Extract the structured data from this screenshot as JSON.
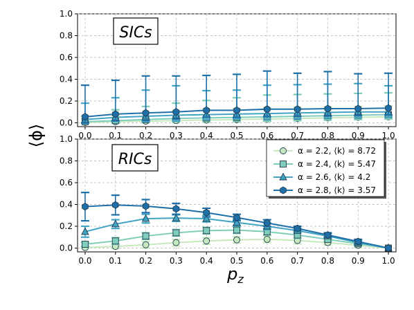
{
  "chart_data": [
    {
      "type": "line",
      "panel": "top",
      "label": "SICs",
      "x": [
        0.0,
        0.1,
        0.2,
        0.3,
        0.4,
        0.5,
        0.6,
        0.7,
        0.8,
        0.9,
        1.0
      ],
      "xlim": [
        0.0,
        1.0
      ],
      "ylim": [
        0.0,
        1.0
      ],
      "xticks": [
        "0.0",
        "0.1",
        "0.2",
        "0.3",
        "0.4",
        "0.5",
        "0.6",
        "0.7",
        "0.8",
        "0.9",
        "1.0"
      ],
      "yticks": [
        "0.0",
        "0.2",
        "0.4",
        "0.6",
        "0.8",
        "1.0"
      ],
      "series": [
        {
          "name": "α = 2.2, ⟨k⟩ = 8.72",
          "color": "#c7e9c0",
          "marker": "circle",
          "values": [
            0.005,
            0.01,
            0.015,
            0.02,
            0.025,
            0.03,
            0.035,
            0.04,
            0.045,
            0.05,
            0.055
          ],
          "err_up": [
            0.03,
            0.06,
            0.08,
            0.09,
            0.1,
            0.1,
            0.1,
            0.1,
            0.1,
            0.1,
            0.1
          ]
        },
        {
          "name": "α = 2.4, ⟨k⟩ = 5.47",
          "color": "#7fcdbb",
          "marker": "square",
          "values": [
            0.01,
            0.02,
            0.03,
            0.04,
            0.045,
            0.05,
            0.055,
            0.06,
            0.065,
            0.07,
            0.075
          ],
          "err_up": [
            0.05,
            0.1,
            0.12,
            0.14,
            0.16,
            0.18,
            0.2,
            0.2,
            0.2,
            0.2,
            0.2
          ]
        },
        {
          "name": "α = 2.6, ⟨k⟩ = 4.2",
          "color": "#41a4c4",
          "marker": "triangle",
          "values": [
            0.03,
            0.05,
            0.06,
            0.07,
            0.075,
            0.08,
            0.085,
            0.09,
            0.095,
            0.1,
            0.1
          ],
          "err_up": [
            0.15,
            0.18,
            0.24,
            0.27,
            0.22,
            0.22,
            0.26,
            0.26,
            0.26,
            0.26,
            0.24
          ]
        },
        {
          "name": "α = 2.8, ⟨k⟩ = 3.57",
          "color": "#1f6fa8",
          "marker": "hexagon",
          "values": [
            0.055,
            0.08,
            0.09,
            0.1,
            0.115,
            0.115,
            0.125,
            0.125,
            0.13,
            0.13,
            0.135
          ],
          "err_up": [
            0.29,
            0.31,
            0.34,
            0.33,
            0.32,
            0.33,
            0.35,
            0.33,
            0.34,
            0.32,
            0.32
          ]
        }
      ]
    },
    {
      "type": "line",
      "panel": "bottom",
      "label": "RICs",
      "x": [
        0.0,
        0.1,
        0.2,
        0.3,
        0.4,
        0.5,
        0.6,
        0.7,
        0.8,
        0.9,
        1.0
      ],
      "xlim": [
        0.0,
        1.0
      ],
      "ylim": [
        0.0,
        1.0
      ],
      "xlabel": "p_z",
      "ylabel": "⟨ϕ⟩",
      "xticks": [
        "0.0",
        "0.1",
        "0.2",
        "0.3",
        "0.4",
        "0.5",
        "0.6",
        "0.7",
        "0.8",
        "0.9",
        "1.0"
      ],
      "yticks": [
        "0.0",
        "0.2",
        "0.4",
        "0.6",
        "0.8",
        "1.0"
      ],
      "legend": "top-right",
      "series": [
        {
          "name": "α = 2.2, ⟨k⟩ = 8.72",
          "color": "#c7e9c0",
          "marker": "circle",
          "values": [
            0.005,
            0.015,
            0.03,
            0.05,
            0.065,
            0.075,
            0.08,
            0.07,
            0.05,
            0.025,
            0.0
          ],
          "err_up": [
            0.01,
            0.02,
            0.03,
            0.03,
            0.03,
            0.03,
            0.03,
            0.03,
            0.02,
            0.02,
            0.0
          ]
        },
        {
          "name": "α = 2.4, ⟨k⟩ = 5.47",
          "color": "#7fcdbb",
          "marker": "square",
          "values": [
            0.035,
            0.065,
            0.11,
            0.14,
            0.16,
            0.165,
            0.15,
            0.12,
            0.08,
            0.04,
            0.0
          ],
          "err_up": [
            0.02,
            0.03,
            0.03,
            0.03,
            0.03,
            0.03,
            0.03,
            0.03,
            0.02,
            0.02,
            0.0
          ]
        },
        {
          "name": "α = 2.6, ⟨k⟩ = 4.2",
          "color": "#41a4c4",
          "marker": "triangle",
          "values": [
            0.15,
            0.22,
            0.27,
            0.275,
            0.27,
            0.235,
            0.2,
            0.16,
            0.11,
            0.05,
            0.0
          ],
          "err_up": [
            0.05,
            0.04,
            0.04,
            0.03,
            0.03,
            0.03,
            0.03,
            0.02,
            0.02,
            0.02,
            0.0
          ]
        },
        {
          "name": "α = 2.8, ⟨k⟩ = 3.57",
          "color": "#1f6fa8",
          "marker": "hexagon",
          "values": [
            0.38,
            0.395,
            0.385,
            0.36,
            0.325,
            0.28,
            0.23,
            0.18,
            0.12,
            0.06,
            0.0
          ],
          "err_up": [
            0.13,
            0.09,
            0.06,
            0.05,
            0.04,
            0.03,
            0.03,
            0.02,
            0.02,
            0.02,
            0.0
          ]
        }
      ]
    }
  ],
  "labels": {
    "ylabel": "⟨ϕ⟩",
    "xlabel_main": "p",
    "xlabel_sub": "z",
    "top_panel": "SICs",
    "bottom_panel": "RICs"
  },
  "legend": [
    {
      "alpha": "α = 2.2, ⟨k⟩ = 8.72"
    },
    {
      "alpha": "α = 2.4, ⟨k⟩ = 5.47"
    },
    {
      "alpha": "α = 2.6, ⟨k⟩ = 4.2"
    },
    {
      "alpha": "α = 2.8, ⟨k⟩ = 3.57"
    }
  ]
}
